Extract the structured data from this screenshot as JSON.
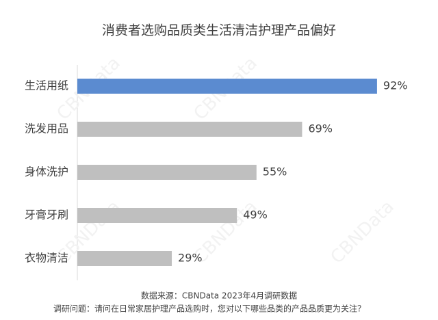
{
  "chart_data": {
    "type": "hbar",
    "title": "消费者选购品质类生活清洁护理产品偏好",
    "categories": [
      "生活用纸",
      "洗发用品",
      "身体洗护",
      "牙膏牙刷",
      "衣物清洁"
    ],
    "values": [
      92,
      69,
      55,
      49,
      29
    ],
    "value_labels": [
      "92%",
      "69%",
      "55%",
      "49%",
      "29%"
    ],
    "colors": [
      "#5b8bd0",
      "#bfbfbf",
      "#bfbfbf",
      "#bfbfbf",
      "#bfbfbf"
    ],
    "source": "数据来源：CBNData 2023年4月调研数据",
    "question": "调研问题：请问在日常家居护理产品选购时，您对以下哪些品类的产品品质更为关注？",
    "watermark": "CBNData"
  }
}
